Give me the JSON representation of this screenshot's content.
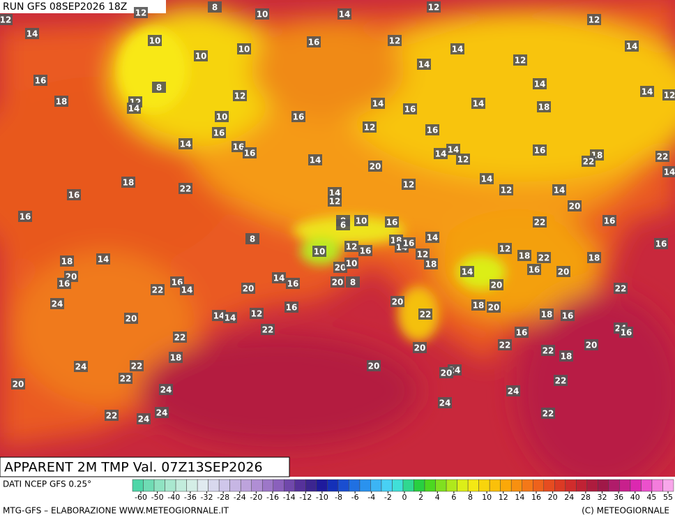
{
  "header": {
    "run": "RUN GFS 08SEP2026 18Z",
    "field": "APPARENT 2M TMP Val. 07Z13SEP2026"
  },
  "footer": {
    "source": "DATI NCEP GFS 0.25°",
    "credit": "MTG-GFS – ELABORAZIONE WWW.METEOGIORNALE.IT",
    "copyright": "(C) METEOGIORNALE"
  },
  "map_labels": [
    12,
    12,
    8,
    10,
    14,
    12,
    12,
    14,
    10,
    10,
    10,
    16,
    12,
    14,
    12,
    14,
    14,
    16,
    8,
    12,
    14,
    18,
    12,
    10,
    16,
    14,
    16,
    14,
    14,
    14,
    18,
    12,
    16,
    14,
    16,
    16,
    12,
    16,
    14,
    14,
    12,
    16,
    18,
    22,
    22,
    14,
    14,
    20,
    18,
    22,
    16,
    12,
    14,
    12,
    14,
    20,
    16,
    14,
    12,
    8,
    10,
    6,
    16,
    22,
    16,
    8,
    10,
    12,
    16,
    18,
    14,
    16,
    14,
    12,
    18,
    22,
    16,
    18,
    14,
    12,
    18,
    20,
    10,
    14,
    16,
    20,
    18,
    20,
    16,
    14,
    16,
    20,
    16,
    14,
    22,
    20,
    8,
    20,
    18,
    20,
    22,
    24,
    16,
    20,
    12,
    14,
    14,
    18,
    16,
    20,
    22,
    22,
    24,
    16,
    16,
    22,
    22,
    20,
    20,
    22,
    18,
    18,
    22,
    24,
    20,
    24,
    20,
    22,
    20,
    24,
    22,
    24,
    24,
    22,
    24,
    24,
    22
  ],
  "colorbar": {
    "ticks": [
      -60,
      -50,
      -40,
      -36,
      -32,
      -28,
      -24,
      -20,
      -16,
      -14,
      -12,
      -10,
      -8,
      -6,
      -4,
      -2,
      0,
      2,
      4,
      6,
      8,
      10,
      12,
      14,
      16,
      20,
      24,
      28,
      32,
      36,
      40,
      45,
      55
    ],
    "colors": [
      "#4fd6a8",
      "#6fdcb4",
      "#8fe3c2",
      "#a9e8cf",
      "#c2ecdc",
      "#d4eee6",
      "#e0eaf0",
      "#d8d8ee",
      "#cfc6ea",
      "#c7b6e4",
      "#bda3dc",
      "#b08ed4",
      "#9d77c8",
      "#8a60bc",
      "#7048ab",
      "#55319a",
      "#3c2590",
      "#1e1a9c",
      "#1430b8",
      "#1a4ed0",
      "#2070e2",
      "#2a92ee",
      "#3cb4f4",
      "#48d0f4",
      "#40e0d8",
      "#30d890",
      "#28d040",
      "#4cd820",
      "#80e020",
      "#b0e81c",
      "#dcee18",
      "#f4e814",
      "#f8d40c",
      "#fac00a",
      "#fba808",
      "#f89010",
      "#f47818",
      "#ee621c",
      "#e64c20",
      "#dc3a24",
      "#d02c2c",
      "#c02234",
      "#ae1c3e",
      "#a01848",
      "#b01c6a",
      "#c8208c",
      "#dc28b0",
      "#ec50cc",
      "#f47cdc",
      "#f8a6ea"
    ]
  }
}
